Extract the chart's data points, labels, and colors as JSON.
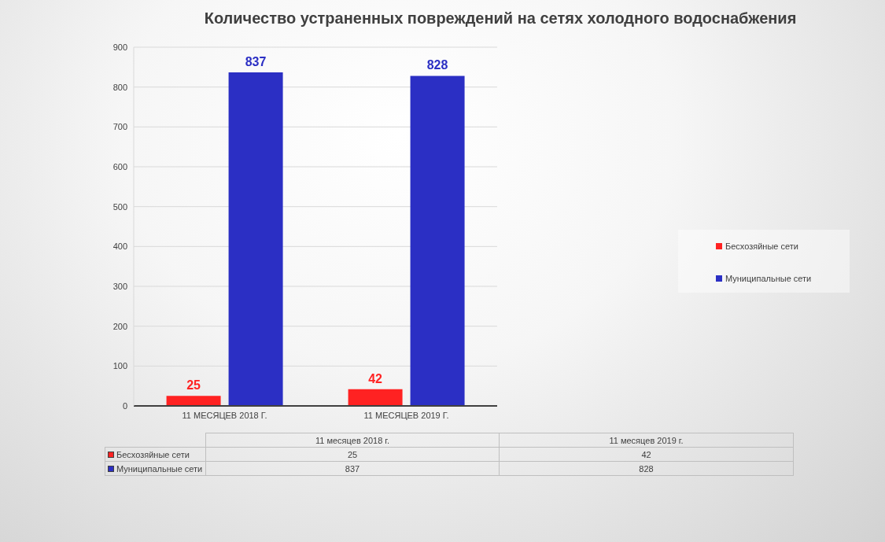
{
  "chart_data": {
    "type": "bar",
    "title": "Количество устраненных повреждений на сетях холодного водоснабжения",
    "categories": [
      "11 МЕСЯЦЕВ 2018 Г.",
      "11 МЕСЯЦЕВ 2019 Г."
    ],
    "series": [
      {
        "name": "Бесхозяйные сети",
        "color": "#ff2222",
        "values": [
          25,
          42
        ]
      },
      {
        "name": "Муниципальные сети",
        "color": "#2b2fc4",
        "values": [
          837,
          828
        ]
      }
    ],
    "ylim": [
      0,
      900
    ],
    "yticks": [
      0,
      100,
      200,
      300,
      400,
      500,
      600,
      700,
      800,
      900
    ],
    "grid": "y",
    "legend": "right",
    "data_labels": true,
    "annotations": [
      "11 месяцев 2018 г.",
      "11 месяцев 2019 г.",
      "25",
      "42",
      "837",
      "828"
    ]
  }
}
